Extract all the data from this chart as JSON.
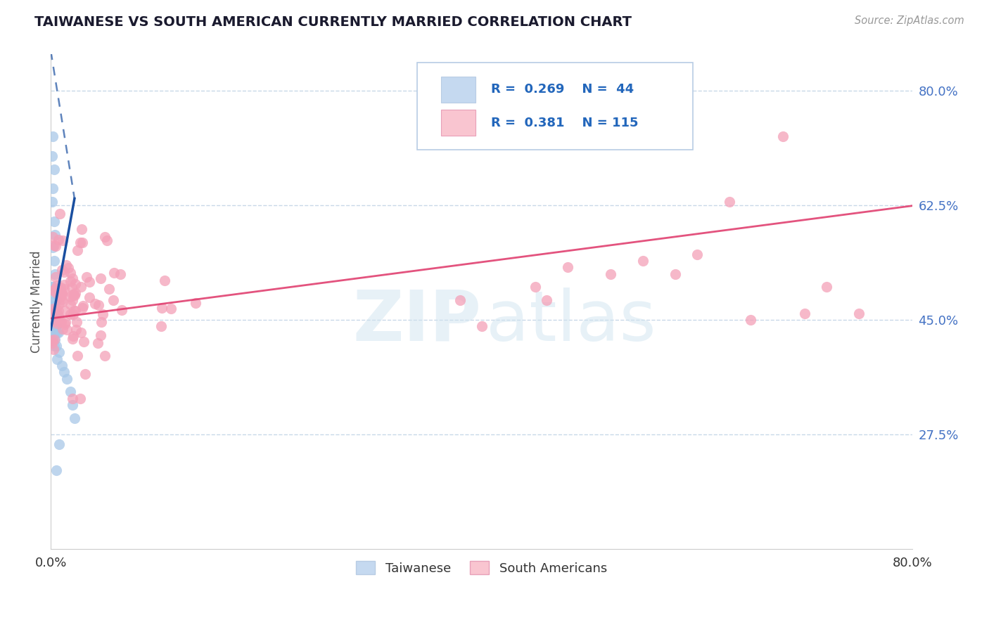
{
  "title": "TAIWANESE VS SOUTH AMERICAN CURRENTLY MARRIED CORRELATION CHART",
  "source_text": "Source: ZipAtlas.com",
  "ylabel": "Currently Married",
  "xlim": [
    0.0,
    0.8
  ],
  "ylim": [
    0.1,
    0.855
  ],
  "yticks": [
    0.275,
    0.45,
    0.625,
    0.8
  ],
  "ytick_labels": [
    "27.5%",
    "45.0%",
    "62.5%",
    "80.0%"
  ],
  "xticks": [
    0.0,
    0.8
  ],
  "xtick_labels": [
    "0.0%",
    "80.0%"
  ],
  "taiwanese_color": "#a8c8e8",
  "south_american_color": "#f4a0b8",
  "taiwanese_line_color": "#1a4fa0",
  "south_american_line_color": "#e04070",
  "legend_box_color_taiwanese": "#c5d9f0",
  "legend_box_color_sa": "#f9c5d0",
  "R_taiwanese": 0.269,
  "N_taiwanese": 44,
  "R_sa": 0.381,
  "N_sa": 115,
  "watermark_zip": "ZIP",
  "watermark_atlas": "atlas",
  "background_color": "#ffffff",
  "grid_color": "#c8d8e8",
  "tw_line_x0": 0.0,
  "tw_line_y0": 0.435,
  "tw_line_x1": 0.022,
  "tw_line_y1": 0.635,
  "tw_line_dash_x0": 0.0,
  "tw_line_dash_y0": 0.86,
  "tw_line_dash_x1": 0.022,
  "tw_line_dash_y1": 0.635,
  "sa_line_x0": 0.0,
  "sa_line_y0": 0.452,
  "sa_line_x1": 0.8,
  "sa_line_y1": 0.624
}
